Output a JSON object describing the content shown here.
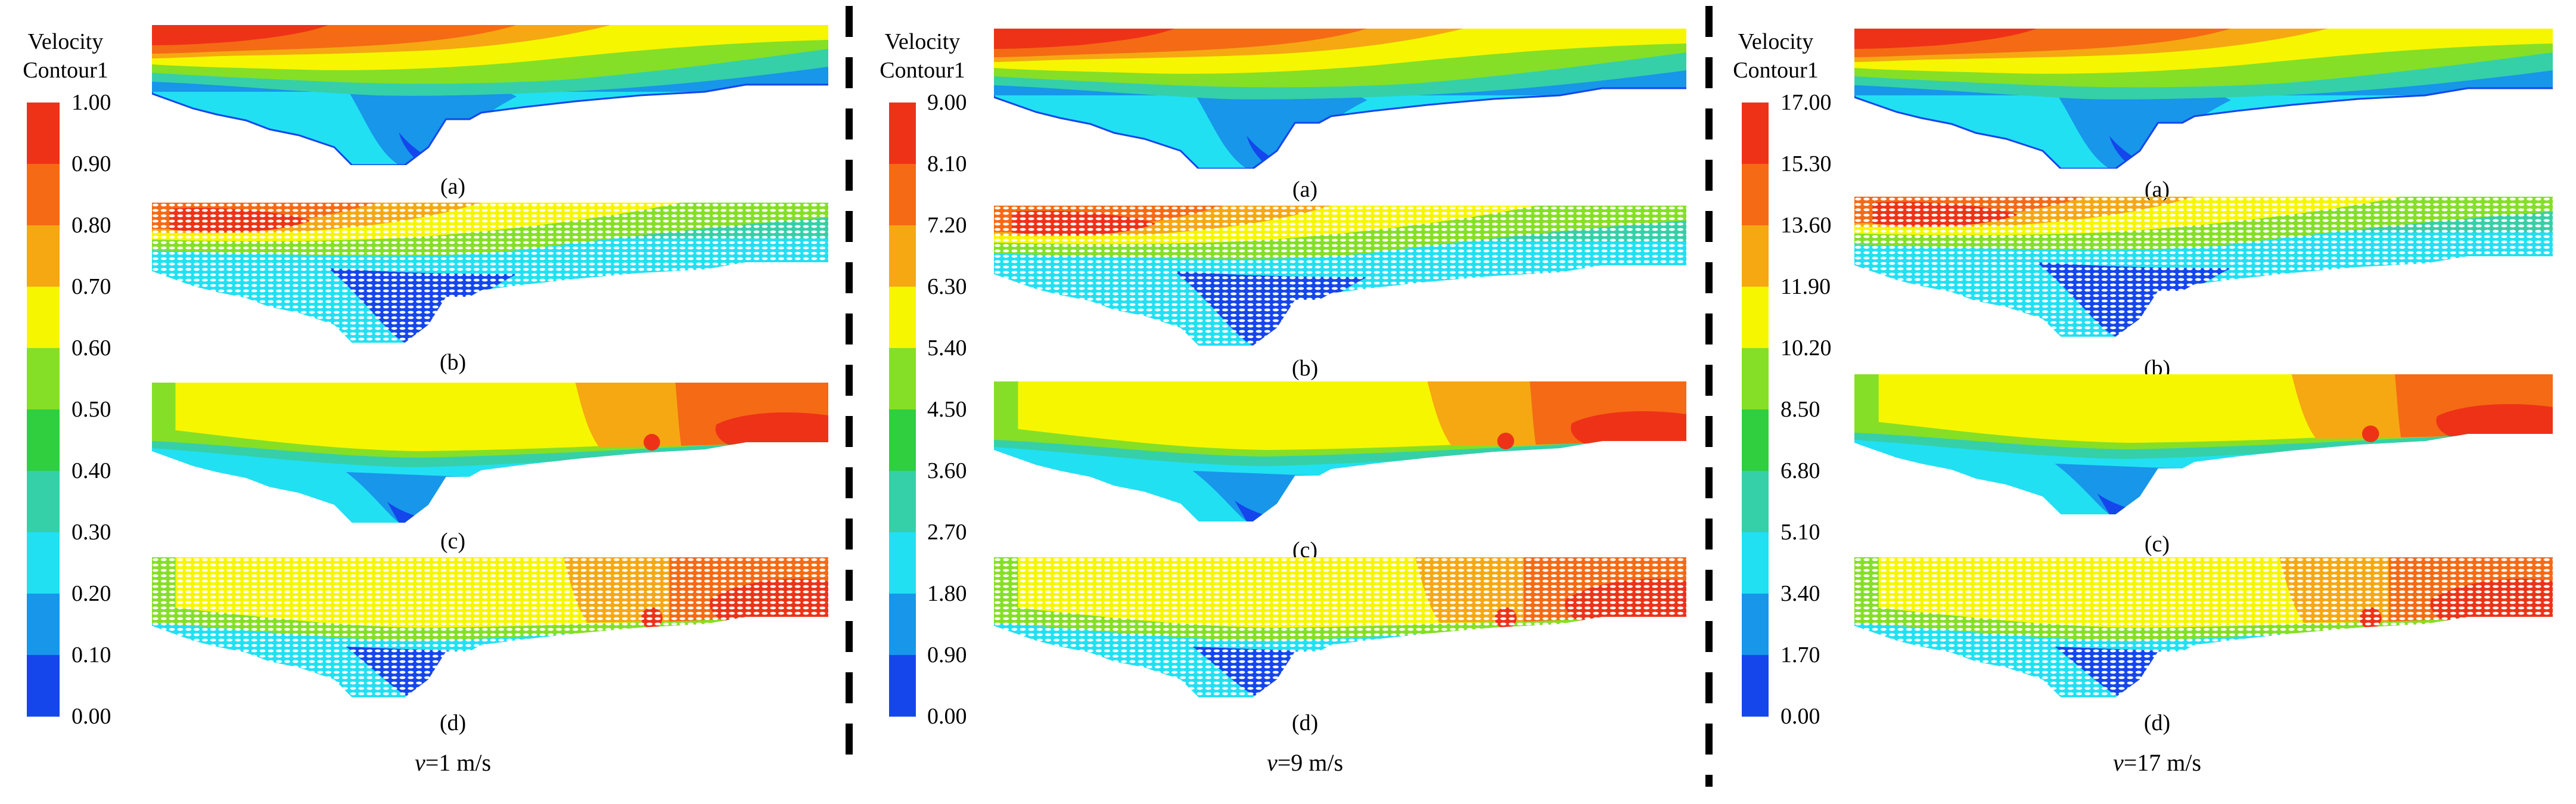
{
  "legend_colors": [
    "#1446ec",
    "#1796ea",
    "#21e0f2",
    "#35d0a7",
    "#2fcf3f",
    "#85df26",
    "#f6f600",
    "#f5a812",
    "#f56a14",
    "#ee3218"
  ],
  "columns": [
    {
      "legend_title": [
        "Velocity",
        "Contour1"
      ],
      "ticks": [
        "1.00",
        "0.90",
        "0.80",
        "0.70",
        "0.60",
        "0.50",
        "0.40",
        "0.30",
        "0.20",
        "0.10",
        "0.00"
      ],
      "labels": [
        "(a)",
        "(b)",
        "(c)",
        "(d)"
      ],
      "speed": {
        "prefix": "v",
        "suffix": "=1 m/s"
      }
    },
    {
      "legend_title": [
        "Velocity",
        "Contour1"
      ],
      "ticks": [
        "9.00",
        "8.10",
        "7.20",
        "6.30",
        "5.40",
        "4.50",
        "3.60",
        "2.70",
        "1.80",
        "0.90",
        "0.00"
      ],
      "labels": [
        "(a)",
        "(b)",
        "(c)",
        "(d)"
      ],
      "speed": {
        "prefix": "v",
        "suffix": "=9 m/s"
      }
    },
    {
      "legend_title": [
        "Velocity",
        "Contour1"
      ],
      "ticks": [
        "17.00",
        "15.30",
        "13.60",
        "11.90",
        "10.20",
        "8.50",
        "6.80",
        "5.10",
        "3.40",
        "1.70",
        "0.00"
      ],
      "labels": [
        "(a)",
        "(b)",
        "(c)",
        "(d)"
      ],
      "speed": {
        "prefix": "v",
        "suffix": "=17 m/s"
      }
    }
  ]
}
